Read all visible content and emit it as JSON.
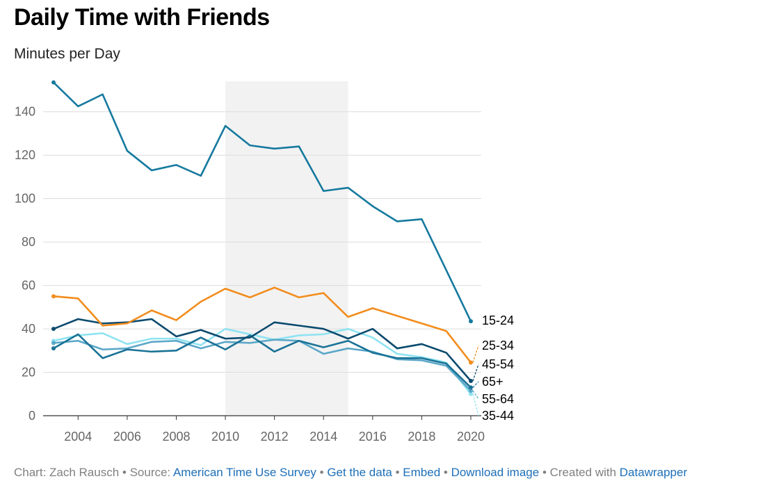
{
  "header": {
    "title": "Daily Time with Friends",
    "subtitle": "Minutes per Day"
  },
  "chart_data": {
    "type": "line",
    "x": [
      2003,
      2004,
      2005,
      2006,
      2007,
      2008,
      2009,
      2010,
      2011,
      2012,
      2013,
      2014,
      2015,
      2016,
      2017,
      2018,
      2019,
      2020
    ],
    "xticks": [
      2004,
      2006,
      2008,
      2010,
      2012,
      2014,
      2016,
      2018,
      2020
    ],
    "yticks": [
      0,
      20,
      40,
      60,
      80,
      100,
      120,
      140
    ],
    "ylim": [
      0,
      154
    ],
    "xlim": [
      2003,
      2020
    ],
    "grid": "horizontal",
    "shaded_range": [
      2010,
      2015
    ],
    "series": [
      {
        "name": "15-24",
        "color": "#15799e",
        "values": [
          153.5,
          142.5,
          148,
          122,
          113,
          115.5,
          110.5,
          133.5,
          124.5,
          123,
          124,
          103.5,
          105,
          96.5,
          89.5,
          90.5,
          67,
          43.5
        ]
      },
      {
        "name": "25-34",
        "color": "#f28c1c",
        "values": [
          55,
          54,
          41.5,
          42.5,
          48.5,
          44,
          52.5,
          58.5,
          54.5,
          59,
          54.5,
          56.5,
          45.5,
          49.5,
          46,
          42.5,
          39,
          24.5
        ]
      },
      {
        "name": "45-54",
        "color": "#0b4a6e",
        "values": [
          40,
          44.5,
          42.5,
          43,
          44.5,
          36.5,
          39.5,
          35.5,
          36,
          43,
          41.5,
          40,
          35.5,
          40,
          31,
          33,
          29,
          16
        ]
      },
      {
        "name": "65+",
        "color": "#1a7296",
        "values": [
          31,
          37.5,
          26.5,
          30.5,
          29.5,
          30,
          36,
          30.5,
          37,
          29.5,
          34.5,
          31.5,
          34.5,
          29,
          26.5,
          26.5,
          24,
          13
        ]
      },
      {
        "name": "55-64",
        "color": "#5aa7c8",
        "values": [
          33.5,
          34.5,
          30.5,
          31,
          34,
          34.5,
          31,
          34,
          33.5,
          35,
          34.5,
          28.5,
          31,
          29.5,
          26,
          25.5,
          23,
          11.5
        ]
      },
      {
        "name": "35-44",
        "color": "#8fe3f1",
        "values": [
          34.5,
          37,
          38,
          33,
          35.5,
          35.5,
          32.5,
          40,
          37.5,
          35,
          37,
          37.5,
          40,
          36,
          28.5,
          27,
          24.5,
          10
        ]
      }
    ]
  },
  "footer": {
    "prefix": "Chart: Zach Rausch • Source: ",
    "source_link": "American Time Use Survey",
    "sep1": " • ",
    "data_link": "Get the data",
    "sep2": " • ",
    "embed_link": "Embed",
    "sep3": "  • ",
    "download_link": "Download image",
    "sep4": " • Created with ",
    "datawrapper_link": "Datawrapper"
  }
}
